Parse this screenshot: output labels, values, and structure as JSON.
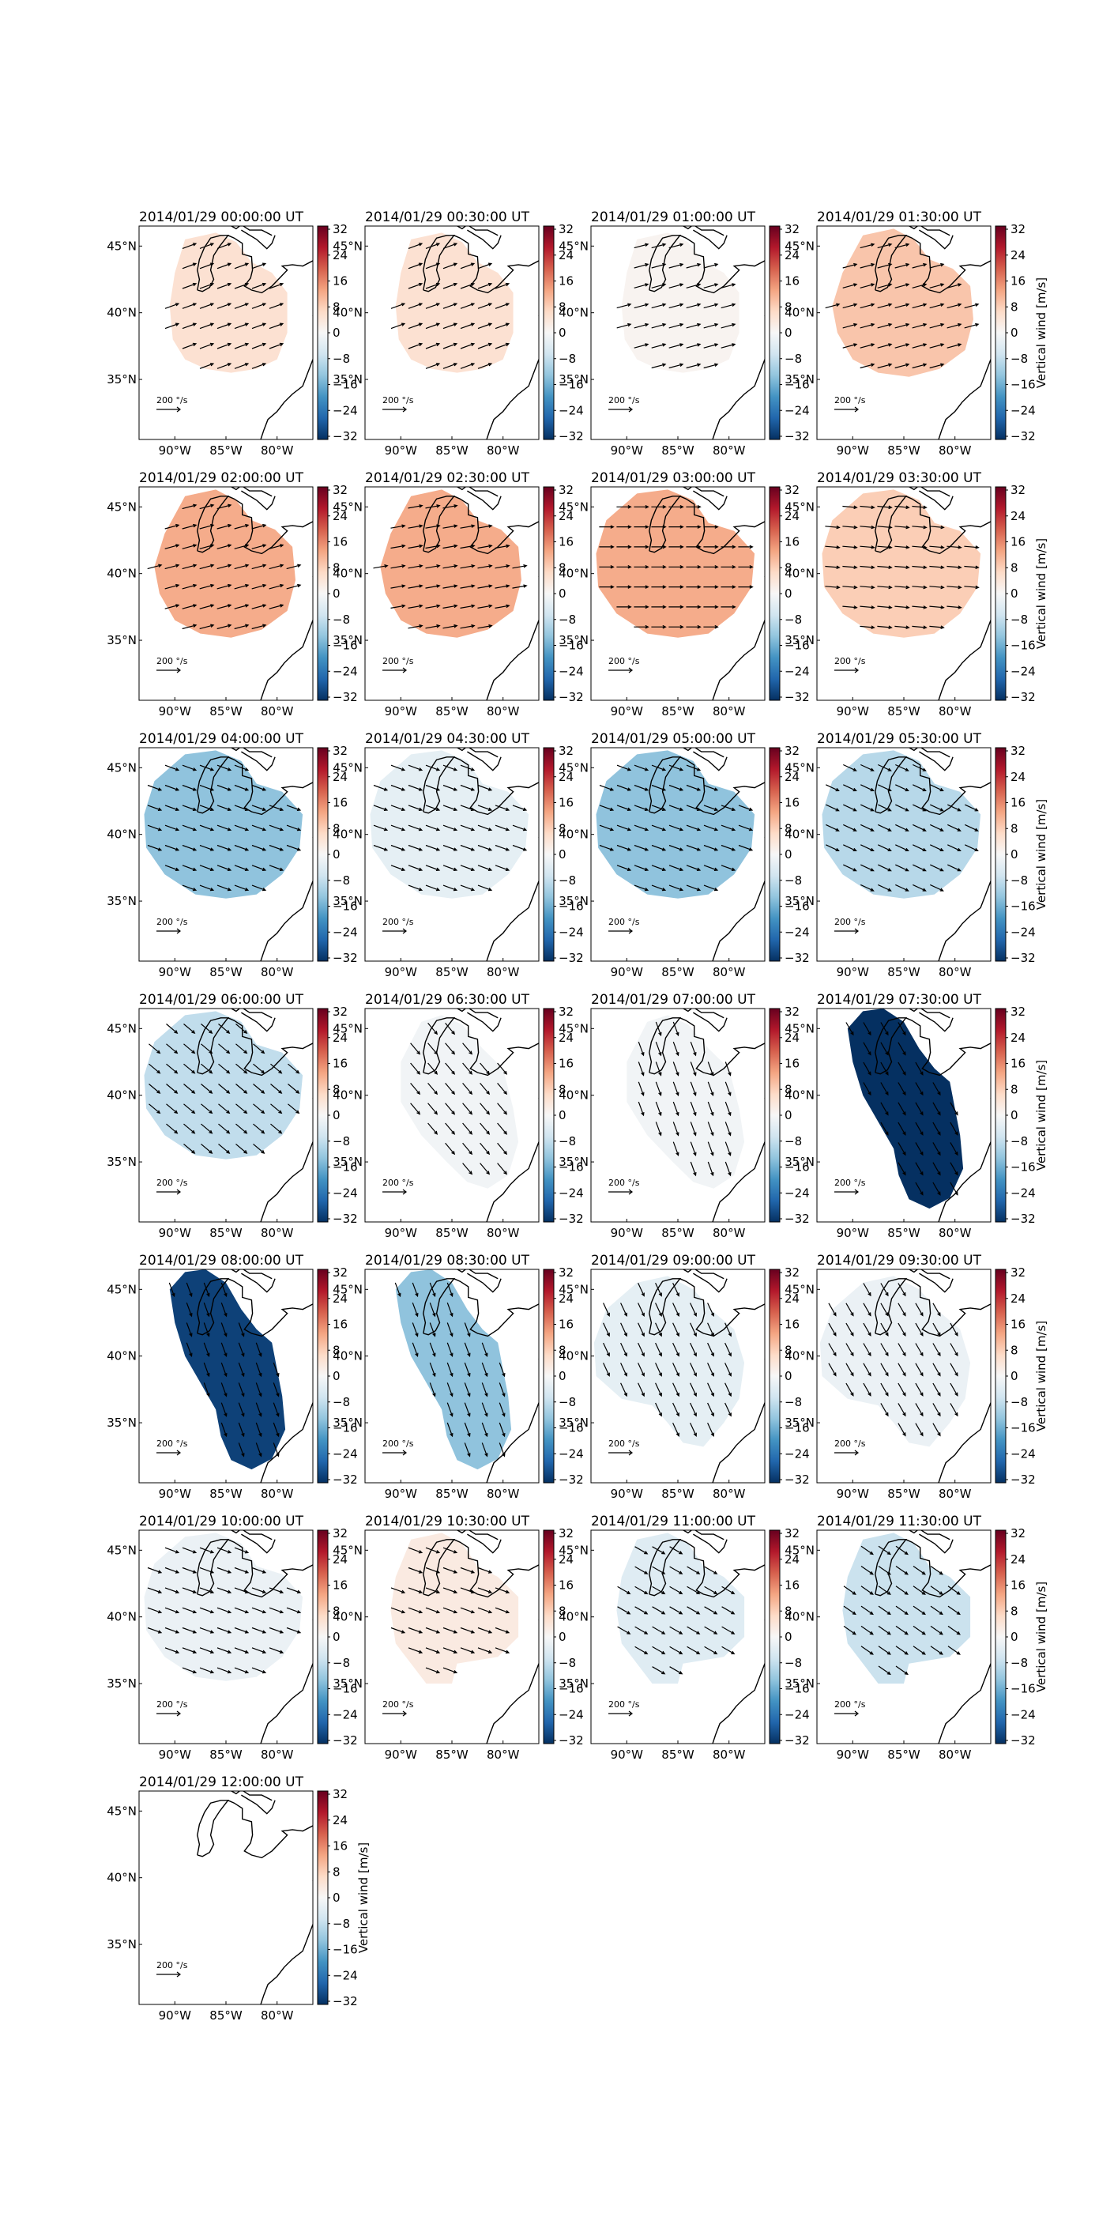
{
  "figure": {
    "colormap_colors": [
      "#053061",
      "#2166ac",
      "#4393c3",
      "#92c5de",
      "#d1e5f0",
      "#f7f7f7",
      "#fddbc7",
      "#f4a582",
      "#d6604d",
      "#b2182b",
      "#67001f"
    ],
    "colorbar": {
      "label": "Vertical wind [m/s]",
      "vmin": -32,
      "vmax": 32,
      "ticks": [
        "32",
        "24",
        "16",
        "8",
        "0",
        "−8",
        "−16",
        "−24",
        "−32"
      ]
    },
    "map_axes": {
      "x_ticks": [
        "90°W",
        "85°W",
        "80°W"
      ],
      "y_ticks": [
        "45°N",
        "40°N",
        "35°N"
      ]
    },
    "scale_label": "200 °/s",
    "panels": [
      {
        "title": "2014/01/29 00:00:00 UT",
        "vertical_wind": 5,
        "arrow_dir_deg": 20
      },
      {
        "title": "2014/01/29 00:30:00 UT",
        "vertical_wind": 5,
        "arrow_dir_deg": 20
      },
      {
        "title": "2014/01/29 01:00:00 UT",
        "vertical_wind": 1,
        "arrow_dir_deg": 15
      },
      {
        "title": "2014/01/29 01:30:00 UT",
        "vertical_wind": 9,
        "arrow_dir_deg": 15
      },
      {
        "title": "2014/01/29 02:00:00 UT",
        "vertical_wind": 12,
        "arrow_dir_deg": 15
      },
      {
        "title": "2014/01/29 02:30:00 UT",
        "vertical_wind": 12,
        "arrow_dir_deg": 10
      },
      {
        "title": "2014/01/29 03:00:00 UT",
        "vertical_wind": 12,
        "arrow_dir_deg": 0
      },
      {
        "title": "2014/01/29 03:30:00 UT",
        "vertical_wind": 8,
        "arrow_dir_deg": -5
      },
      {
        "title": "2014/01/29 04:00:00 UT",
        "vertical_wind": -13,
        "arrow_dir_deg": -20
      },
      {
        "title": "2014/01/29 04:30:00 UT",
        "vertical_wind": -3,
        "arrow_dir_deg": -20
      },
      {
        "title": "2014/01/29 05:00:00 UT",
        "vertical_wind": -13,
        "arrow_dir_deg": -20
      },
      {
        "title": "2014/01/29 05:30:00 UT",
        "vertical_wind": -9,
        "arrow_dir_deg": -25
      },
      {
        "title": "2014/01/29 06:00:00 UT",
        "vertical_wind": -8,
        "arrow_dir_deg": -40
      },
      {
        "title": "2014/01/29 06:30:00 UT",
        "vertical_wind": -1,
        "arrow_dir_deg": -50
      },
      {
        "title": "2014/01/29 07:00:00 UT",
        "vertical_wind": -1,
        "arrow_dir_deg": -70
      },
      {
        "title": "2014/01/29 07:30:00 UT",
        "vertical_wind": -32,
        "arrow_dir_deg": -60
      },
      {
        "title": "2014/01/29 08:00:00 UT",
        "vertical_wind": -30,
        "arrow_dir_deg": -70
      },
      {
        "title": "2014/01/29 08:30:00 UT",
        "vertical_wind": -13,
        "arrow_dir_deg": -70
      },
      {
        "title": "2014/01/29 09:00:00 UT",
        "vertical_wind": -3,
        "arrow_dir_deg": -65
      },
      {
        "title": "2014/01/29 09:30:00 UT",
        "vertical_wind": -2,
        "arrow_dir_deg": -60
      },
      {
        "title": "2014/01/29 10:00:00 UT",
        "vertical_wind": -2,
        "arrow_dir_deg": -20
      },
      {
        "title": "2014/01/29 10:30:00 UT",
        "vertical_wind": 3,
        "arrow_dir_deg": -20
      },
      {
        "title": "2014/01/29 11:00:00 UT",
        "vertical_wind": -4,
        "arrow_dir_deg": -30
      },
      {
        "title": "2014/01/29 11:30:00 UT",
        "vertical_wind": -7,
        "arrow_dir_deg": -35
      },
      {
        "title": "2014/01/29 12:00:00 UT",
        "vertical_wind": null,
        "arrow_dir_deg": null
      }
    ]
  }
}
